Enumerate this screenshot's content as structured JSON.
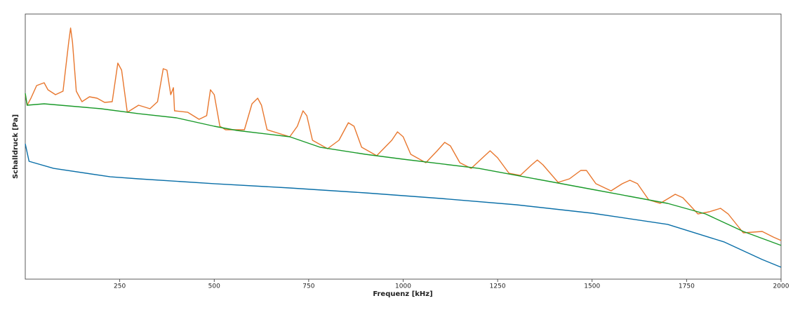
{
  "chart_data": {
    "type": "line",
    "xlabel": "Frequenz [kHz]",
    "ylabel": "Schalldruck [Pa]",
    "xlim": [
      0,
      2000
    ],
    "xticks": [
      250,
      500,
      750,
      1000,
      1250,
      1500,
      1750,
      2000
    ],
    "ylim": [
      0.000346,
      6.12
    ],
    "log_y": true,
    "series": [
      {
        "color": "#e8772e",
        "x": [
          0,
          5,
          15,
          30,
          50,
          60,
          80,
          100,
          115,
          120,
          125,
          135,
          150,
          170,
          190,
          210,
          230,
          245,
          255,
          270,
          285,
          300,
          330,
          350,
          365,
          375,
          385,
          392,
          395,
          430,
          460,
          480,
          490,
          500,
          515,
          530,
          580,
          600,
          615,
          625,
          640,
          700,
          720,
          735,
          745,
          760,
          800,
          830,
          855,
          870,
          890,
          930,
          970,
          985,
          1000,
          1020,
          1060,
          1090,
          1110,
          1125,
          1150,
          1180,
          1210,
          1230,
          1250,
          1280,
          1310,
          1340,
          1355,
          1370,
          1410,
          1440,
          1470,
          1485,
          1510,
          1550,
          1580,
          1600,
          1620,
          1650,
          1680,
          1720,
          1740,
          1780,
          1810,
          1840,
          1860,
          1900,
          1950,
          1980,
          2000
        ],
        "values": [
          0.312,
          0.212,
          0.274,
          0.437,
          0.485,
          0.374,
          0.312,
          0.355,
          2.17,
          3.65,
          2.17,
          0.355,
          0.241,
          0.289,
          0.274,
          0.235,
          0.241,
          1,
          0.772,
          0.163,
          0.186,
          0.212,
          0.186,
          0.241,
          0.813,
          0.772,
          0.312,
          0.404,
          0.172,
          0.163,
          0.126,
          0.144,
          0.374,
          0.312,
          0.0975,
          0.0857,
          0.0857,
          0.223,
          0.274,
          0.212,
          0.0857,
          0.0661,
          0.0975,
          0.172,
          0.144,
          0.0581,
          0.0426,
          0.0581,
          0.111,
          0.0975,
          0.0449,
          0.0329,
          0.0581,
          0.0792,
          0.0661,
          0.0346,
          0.0254,
          0.0394,
          0.0537,
          0.0472,
          0.0254,
          0.0206,
          0.0304,
          0.0394,
          0.0304,
          0.0172,
          0.0159,
          0.0235,
          0.0281,
          0.0235,
          0.0123,
          0.014,
          0.0191,
          0.0191,
          0.0117,
          0.009,
          0.0117,
          0.0133,
          0.0117,
          0.00644,
          0.00566,
          0.00792,
          0.00697,
          0.00384,
          0.00415,
          0.00472,
          0.00384,
          0.00191,
          0.00201,
          0.00163,
          0.00144
        ]
      },
      {
        "color": "#1a9a2a",
        "x": [
          0,
          5,
          50,
          200,
          300,
          400,
          500,
          560,
          700,
          780,
          900,
          1000,
          1200,
          1300,
          1400,
          1500,
          1600,
          1700,
          1800,
          1900,
          2000
        ],
        "values": [
          0.329,
          0.212,
          0.223,
          0.186,
          0.155,
          0.133,
          0.0975,
          0.0834,
          0.0661,
          0.0449,
          0.0346,
          0.0289,
          0.0206,
          0.0159,
          0.0123,
          0.0095,
          0.00733,
          0.00566,
          0.00384,
          0.00201,
          0.0012
        ]
      },
      {
        "color": "#0a6fa8",
        "x": [
          0,
          10,
          75,
          225,
          300,
          500,
          700,
          900,
          1100,
          1300,
          1500,
          1700,
          1850,
          1950,
          2000
        ],
        "values": [
          0.051,
          0.0267,
          0.0206,
          0.0151,
          0.014,
          0.0117,
          0.01,
          0.00834,
          0.00678,
          0.00537,
          0.00394,
          0.00261,
          0.00136,
          0.000714,
          0.000537
        ]
      }
    ]
  }
}
